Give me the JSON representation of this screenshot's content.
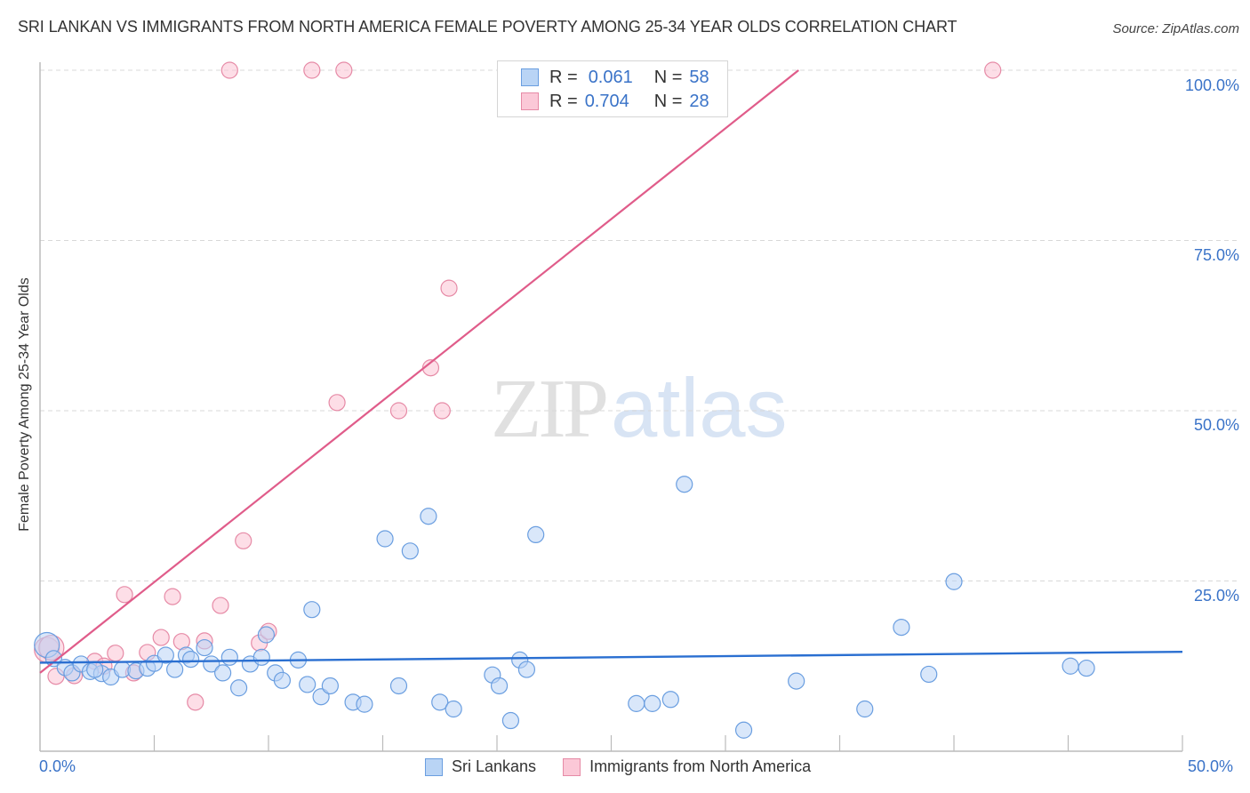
{
  "header": {
    "title": "SRI LANKAN VS IMMIGRANTS FROM NORTH AMERICA FEMALE POVERTY AMONG 25-34 YEAR OLDS CORRELATION CHART",
    "source": "Source: ZipAtlas.com"
  },
  "watermark": {
    "zip": "ZIP",
    "atlas": "atlas"
  },
  "legend": {
    "rows": [
      {
        "series": "Sri Lankans",
        "r_label": "R =",
        "r_value": "0.061",
        "n_label": "N =",
        "n_value": "58",
        "fill": "#b9d4f5",
        "stroke": "#6a9ee0"
      },
      {
        "series": "Immigrants from North America",
        "r_label": "R =",
        "r_value": "0.704",
        "n_label": "N =",
        "n_value": "28",
        "fill": "#fbc8d7",
        "stroke": "#e68aa6"
      }
    ]
  },
  "axes": {
    "y_label": "Female Poverty Among 25-34 Year Olds",
    "y_ticks": [
      "100.0%",
      "75.0%",
      "50.0%",
      "25.0%"
    ],
    "x_ticks": [
      "0.0%",
      "50.0%"
    ]
  },
  "bottom_legend": {
    "items": [
      "Sri Lankans",
      "Immigrants from North America"
    ]
  },
  "colors": {
    "blue_fill": "#b9d4f5",
    "blue_stroke": "#6a9ee0",
    "blue_line": "#2a6fd1",
    "pink_fill": "#fbc8d7",
    "pink_stroke": "#e68aa6",
    "pink_line": "#e05c8a",
    "tick_text": "#3a73c8"
  },
  "chart_data": {
    "type": "scatter",
    "title": "SRI LANKAN VS IMMIGRANTS FROM NORTH AMERICA FEMALE POVERTY AMONG 25-34 YEAR OLDS CORRELATION CHART",
    "xlabel": "",
    "ylabel": "Female Poverty Among 25-34 Year Olds",
    "xlim": [
      0,
      50
    ],
    "ylim": [
      0,
      100
    ],
    "x_ticks": [
      0,
      50
    ],
    "y_ticks": [
      25,
      50,
      75,
      100
    ],
    "grid": "horizontal dashed",
    "legend_position": "top-center and bottom",
    "series": [
      {
        "name": "Sri Lankans",
        "r": 0.061,
        "n": 58,
        "trendline": {
          "x": [
            0,
            50
          ],
          "y": [
            13.0,
            14.6
          ]
        },
        "points": [
          [
            0.3,
            15.6
          ],
          [
            0.6,
            13.6
          ],
          [
            1.1,
            12.3
          ],
          [
            1.4,
            11.5
          ],
          [
            1.8,
            12.8
          ],
          [
            2.2,
            11.7
          ],
          [
            2.7,
            11.4
          ],
          [
            3.1,
            10.9
          ],
          [
            3.6,
            12.0
          ],
          [
            4.2,
            11.8
          ],
          [
            4.7,
            12.2
          ],
          [
            5.0,
            12.9
          ],
          [
            5.5,
            14.1
          ],
          [
            5.9,
            12.0
          ],
          [
            6.4,
            14.1
          ],
          [
            6.6,
            13.5
          ],
          [
            7.2,
            15.2
          ],
          [
            7.5,
            12.8
          ],
          [
            8.0,
            11.5
          ],
          [
            8.3,
            13.8
          ],
          [
            8.7,
            9.3
          ],
          [
            9.2,
            12.8
          ],
          [
            9.7,
            13.8
          ],
          [
            9.9,
            17.1
          ],
          [
            10.3,
            11.5
          ],
          [
            10.6,
            10.4
          ],
          [
            11.3,
            13.4
          ],
          [
            11.7,
            9.8
          ],
          [
            11.9,
            20.8
          ],
          [
            12.3,
            8.0
          ],
          [
            12.7,
            9.6
          ],
          [
            13.7,
            7.2
          ],
          [
            14.2,
            6.9
          ],
          [
            15.1,
            31.2
          ],
          [
            15.7,
            9.6
          ],
          [
            16.2,
            29.4
          ],
          [
            17.0,
            34.5
          ],
          [
            17.5,
            7.2
          ],
          [
            18.1,
            6.2
          ],
          [
            19.8,
            11.2
          ],
          [
            20.1,
            9.6
          ],
          [
            20.6,
            4.5
          ],
          [
            21.0,
            13.4
          ],
          [
            21.3,
            12.0
          ],
          [
            21.7,
            31.8
          ],
          [
            26.1,
            7.0
          ],
          [
            26.8,
            7.0
          ],
          [
            27.6,
            7.6
          ],
          [
            28.2,
            39.2
          ],
          [
            30.8,
            3.1
          ],
          [
            33.1,
            10.3
          ],
          [
            36.1,
            6.2
          ],
          [
            37.7,
            18.2
          ],
          [
            38.9,
            11.3
          ],
          [
            40.0,
            24.9
          ],
          [
            45.1,
            12.5
          ],
          [
            45.8,
            12.2
          ],
          [
            2.4,
            12.0
          ]
        ]
      },
      {
        "name": "Immigrants from North America",
        "r": 0.704,
        "n": 28,
        "trendline": {
          "x": [
            0,
            33.2
          ],
          "y": [
            11.5,
            100
          ]
        },
        "points": [
          [
            0.3,
            14.9
          ],
          [
            0.7,
            11.0
          ],
          [
            1.5,
            11.1
          ],
          [
            2.4,
            13.2
          ],
          [
            2.8,
            12.5
          ],
          [
            3.3,
            14.4
          ],
          [
            3.7,
            23.0
          ],
          [
            4.1,
            11.5
          ],
          [
            4.7,
            14.5
          ],
          [
            5.3,
            16.7
          ],
          [
            5.8,
            22.7
          ],
          [
            6.2,
            16.1
          ],
          [
            6.8,
            7.2
          ],
          [
            7.2,
            16.2
          ],
          [
            7.9,
            21.4
          ],
          [
            8.3,
            100.0
          ],
          [
            8.9,
            30.9
          ],
          [
            9.6,
            15.9
          ],
          [
            10.0,
            17.6
          ],
          [
            11.9,
            100.0
          ],
          [
            13.0,
            51.2
          ],
          [
            13.3,
            100.0
          ],
          [
            15.7,
            50.0
          ],
          [
            17.1,
            56.3
          ],
          [
            17.6,
            50.0
          ],
          [
            17.9,
            68.0
          ],
          [
            41.7,
            100.0
          ],
          [
            0.5,
            15.2
          ]
        ]
      }
    ]
  }
}
